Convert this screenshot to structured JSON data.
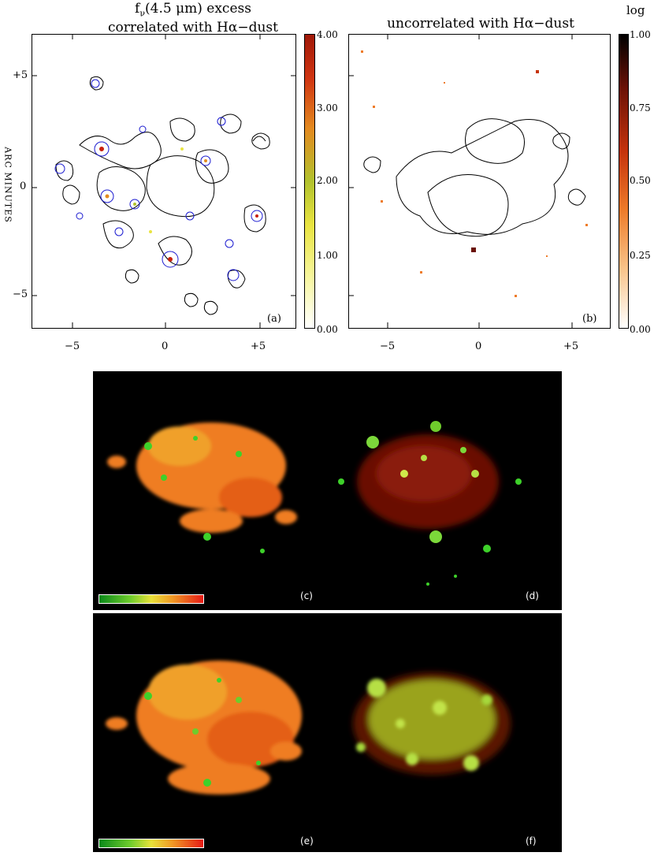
{
  "panel_a": {
    "title_line1": "f",
    "title_sub": "ν",
    "title_line1_rest": "(4.5 μm) excess",
    "title_line2": "correlated with Hα−dust",
    "label": "(a)",
    "y_axis_label": "ARC MINUTES",
    "y_ticks": [
      "+5",
      "0",
      "−5"
    ],
    "x_ticks": [
      "−5",
      "0",
      "+5"
    ],
    "colorbar_ticks": [
      "4.00",
      "3.00",
      "2.00",
      "1.00",
      "0.00"
    ]
  },
  "panel_b": {
    "title": "uncorrelated with Hα−dust",
    "label": "(b)",
    "x_ticks": [
      "−5",
      "0",
      "+5"
    ],
    "colorbar_title": "log",
    "colorbar_ticks": [
      "1.00",
      "0.75",
      "0.50",
      "0.25",
      "0.00"
    ]
  },
  "mosaic": {
    "labels": [
      "(c)",
      "(d)",
      "(e)",
      "(f)"
    ]
  },
  "colors": {
    "contour_black": "#000000",
    "contour_blue": "#1b1bd0",
    "hot_red": "#c8200c",
    "green": "#3ed12a",
    "orange": "#ef7d21"
  }
}
